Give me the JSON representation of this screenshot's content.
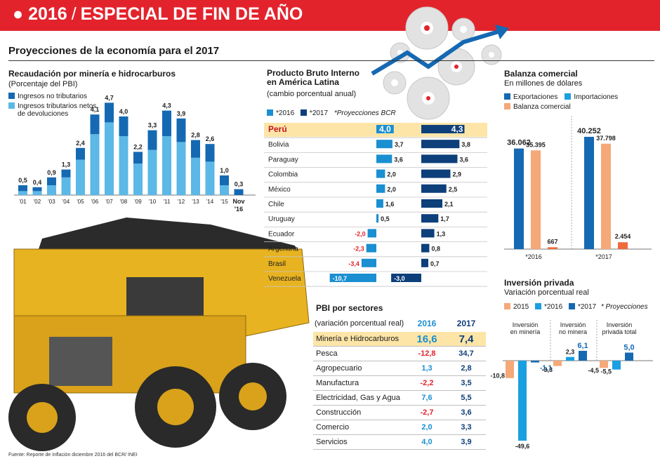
{
  "header": {
    "year": "2016",
    "separator": "/",
    "title": "ESPECIAL DE FIN DE AÑO"
  },
  "subtitle": "Proyecciones de la economía para el 2017",
  "colors": {
    "red": "#e3232c",
    "dark_blue": "#1569b2",
    "light_blue": "#5cb8e6",
    "orange": "#f5a878",
    "dark_orange": "#ef6b3b",
    "highlight": "#fde5a8"
  },
  "mineria": {
    "title": "Recaudación por minería e hidrocarburos",
    "subtitle": "(Porcentaje del PBI)",
    "legend": [
      "Ingresos no tributarios",
      "Ingresos tributarios netos de devoluciones"
    ]
  },
  "pbi_latam": {
    "title": "Producto Bruto Interno en América Latina",
    "subtitle": "(cambio porcentual anual)",
    "legend": [
      "*2016",
      "*2017"
    ],
    "note": "*Proyecciones BCR"
  },
  "balanza": {
    "title": "Balanza comercial",
    "subtitle": "En millones de dólares",
    "legend": [
      "Exportaciones",
      "Importaciones",
      "Balanza comercial"
    ]
  },
  "inversion": {
    "title": "Inversión privada",
    "subtitle": "Variación porcentual real",
    "legend": [
      "2015",
      "*2016",
      "*2017"
    ],
    "note": "* Proyecciones"
  },
  "pbi_sectores": {
    "title": "PBI por sectores",
    "subtitle": "(variación porcentual real)",
    "col_2016": "2016",
    "col_2017": "2017",
    "rows": [
      {
        "name": "Minería e Hidrocarburos",
        "v2016": "16,6",
        "v2017": "7,4"
      },
      {
        "name": "Pesca",
        "v2016": "-12,8",
        "v2017": "34,7"
      },
      {
        "name": "Agropecuario",
        "v2016": "1,3",
        "v2017": "2,8"
      },
      {
        "name": "Manufactura",
        "v2016": "-2,2",
        "v2017": "3,5"
      },
      {
        "name": "Electricidad, Gas y Agua",
        "v2016": "7,6",
        "v2017": "5,5"
      },
      {
        "name": "Construcción",
        "v2016": "-2,7",
        "v2017": "3,6"
      },
      {
        "name": "Comercio",
        "v2016": "2,0",
        "v2017": "3,3"
      },
      {
        "name": "Servicios",
        "v2016": "4,0",
        "v2017": "3,9"
      }
    ]
  },
  "source": "Fuente: Reporte de Inflación diciembre 2016 del BCR/ INEI",
  "chart_data": [
    {
      "type": "bar",
      "title": "Recaudación por minería e hidrocarburos",
      "ylabel": "(Porcentaje del PBI)",
      "categories": [
        "'01",
        "'02",
        "'03",
        "'04",
        "'05",
        "'06",
        "'07",
        "'08",
        "'09",
        "'10",
        "'11",
        "'12",
        "'13",
        "'14",
        "'15",
        "Nov '16"
      ],
      "totals": [
        "0,5",
        "0,4",
        "0,9",
        "1,3",
        "2,4",
        "4,1",
        "4,7",
        "4,0",
        "2,2",
        "3,3",
        "4,3",
        "3,9",
        "2,8",
        "2,6",
        "1,0",
        "0,3"
      ],
      "total_values": [
        0.5,
        0.4,
        0.9,
        1.3,
        2.4,
        4.1,
        4.7,
        4.0,
        2.2,
        3.3,
        4.3,
        3.9,
        2.8,
        2.6,
        1.0,
        0.3
      ],
      "series": [
        {
          "name": "Ingresos no tributarios",
          "values": [
            0.3,
            0.2,
            0.4,
            0.4,
            0.6,
            1.0,
            1.0,
            1.0,
            0.6,
            1.0,
            1.3,
            1.2,
            0.9,
            0.9,
            0.5,
            0.3
          ]
        },
        {
          "name": "Ingresos tributarios netos de devoluciones",
          "values": [
            0.2,
            0.2,
            0.5,
            0.9,
            1.8,
            3.1,
            3.7,
            3.0,
            1.6,
            2.3,
            3.0,
            2.7,
            1.9,
            1.7,
            0.5,
            0.0
          ]
        }
      ],
      "stacked": true,
      "ylim": [
        0,
        4.7
      ]
    },
    {
      "type": "bar",
      "orientation": "horizontal",
      "title": "Producto Bruto Interno en América Latina",
      "categories": [
        "Perú",
        "Bolivia",
        "Paraguay",
        "Colombia",
        "México",
        "Chile",
        "Uruguay",
        "Ecuador",
        "Argentina",
        "Brasil",
        "Venezuela"
      ],
      "series": [
        {
          "name": "*2016",
          "values": [
            4.0,
            3.7,
            3.6,
            2.0,
            2.0,
            1.6,
            0.5,
            -2.0,
            -2.3,
            -3.4,
            -10.7
          ],
          "labels": [
            "4,0",
            "3,7",
            "3,6",
            "2,0",
            "2,0",
            "1,6",
            "0,5",
            "-2,0",
            "-2,3",
            "-3,4",
            "-10,7"
          ]
        },
        {
          "name": "*2017",
          "values": [
            4.3,
            3.8,
            3.6,
            2.9,
            2.5,
            2.1,
            1.7,
            1.3,
            0.8,
            0.7,
            -3.0
          ],
          "labels": [
            "4,3",
            "3,8",
            "3,6",
            "2,9",
            "2,5",
            "2,1",
            "1,7",
            "1,3",
            "0,8",
            "0,7",
            "-3,0"
          ]
        }
      ]
    },
    {
      "type": "bar",
      "title": "Balanza comercial",
      "ylabel": "En millones de dólares",
      "categories": [
        "*2016",
        "*2017"
      ],
      "series": [
        {
          "name": "Exportaciones",
          "values": [
            36062,
            40252
          ],
          "labels": [
            "36.062",
            "40.252"
          ]
        },
        {
          "name": "Importaciones",
          "values": [
            35395,
            37798
          ],
          "labels": [
            "35.395",
            "37.798"
          ]
        },
        {
          "name": "Balanza comercial",
          "values": [
            667,
            2454
          ],
          "labels": [
            "667",
            "2.454"
          ]
        }
      ]
    },
    {
      "type": "bar",
      "title": "Inversión privada",
      "ylabel": "Variación porcentual real",
      "categories": [
        "Inversión en minería",
        "Inversión no minera",
        "Inversión privada total"
      ],
      "series": [
        {
          "name": "2015",
          "values": [
            -10.8,
            -3.3,
            -4.5
          ],
          "labels": [
            "-10,8",
            "-3,3",
            "-4,5"
          ]
        },
        {
          "name": "*2016",
          "values": [
            -49.6,
            2.3,
            -5.5
          ],
          "labels": [
            "-49,6",
            "2,3",
            "-5,5"
          ]
        },
        {
          "name": "*2017",
          "values": [
            -1.1,
            6.1,
            5.0
          ],
          "labels": [
            "-1,1",
            "6,1",
            "5,0"
          ]
        }
      ]
    },
    {
      "type": "table",
      "title": "PBI por sectores",
      "columns": [
        "2016",
        "2017"
      ],
      "rows": [
        "Minería e Hidrocarburos",
        "Pesca",
        "Agropecuario",
        "Manufactura",
        "Electricidad, Gas y Agua",
        "Construcción",
        "Comercio",
        "Servicios"
      ],
      "values_2016": [
        16.6,
        -12.8,
        1.3,
        -2.2,
        7.6,
        -2.7,
        2.0,
        4.0
      ],
      "values_2017": [
        7.4,
        34.7,
        2.8,
        3.5,
        5.5,
        3.6,
        3.3,
        3.9
      ]
    }
  ]
}
